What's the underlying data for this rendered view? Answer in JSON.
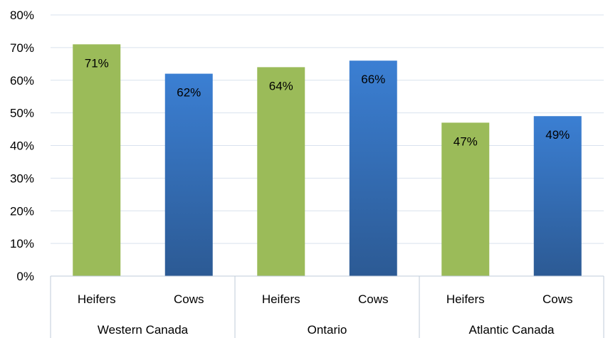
{
  "chart_data": {
    "type": "bar",
    "title": "",
    "xlabel": "",
    "ylabel": "",
    "ylim": [
      0,
      0.8
    ],
    "y_ticks": [
      "0%",
      "10%",
      "20%",
      "30%",
      "40%",
      "50%",
      "60%",
      "70%",
      "80%"
    ],
    "y_tick_values": [
      0,
      0.1,
      0.2,
      0.3,
      0.4,
      0.5,
      0.6,
      0.7,
      0.8
    ],
    "grid": "horizontal",
    "legend": "none",
    "groups": [
      "Western Canada",
      "Ontario",
      "Atlantic Canada"
    ],
    "categories": [
      "Heifers",
      "Cows",
      "Heifers",
      "Cows",
      "Heifers",
      "Cows"
    ],
    "values": [
      0.71,
      0.62,
      0.64,
      0.66,
      0.47,
      0.49
    ],
    "data_labels": [
      "71%",
      "62%",
      "64%",
      "66%",
      "47%",
      "49%"
    ],
    "bar_colors": {
      "Heifers": "#9bbb59",
      "Cows": "#3b78c4"
    }
  },
  "colors": {
    "gridline": "#d9e2ee",
    "axis": "#bfcbd9",
    "cows_gradient_top": "#3b7fd3",
    "cows_gradient_bottom": "#2c5a94"
  }
}
